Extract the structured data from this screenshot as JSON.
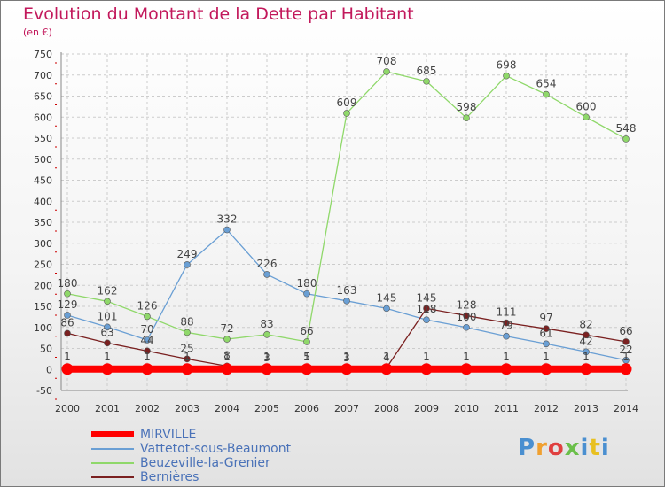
{
  "title": "Evolution du Montant de la Dette par Habitant",
  "subtitle": "(en €)",
  "colors": {
    "title": "#c2185b",
    "grid": "#cccccc",
    "axis_ticks": "#cc0000"
  },
  "chart_data": {
    "type": "line",
    "title": "Evolution du Montant de la Dette par Habitant",
    "ylabel": "(en €)",
    "xlabel": "",
    "x": [
      "2000",
      "2001",
      "2002",
      "2003",
      "2004",
      "2005",
      "2006",
      "2007",
      "2008",
      "2009",
      "2010",
      "2011",
      "2012",
      "2013",
      "2014"
    ],
    "ylim": [
      -50,
      750
    ],
    "yticks": [
      -50,
      0,
      50,
      100,
      150,
      200,
      250,
      300,
      350,
      400,
      450,
      500,
      550,
      600,
      650,
      700,
      750
    ],
    "grid": true,
    "legend_position": "bottom-left",
    "series": [
      {
        "name": "MIRVILLE",
        "color": "#ff0000",
        "values": [
          1,
          1,
          1,
          1,
          1,
          1,
          1,
          1,
          1,
          1,
          1,
          1,
          1,
          1,
          1
        ],
        "labels": [
          "1",
          "1",
          "1",
          "1",
          "1",
          "1",
          "1",
          "1",
          "1",
          "1",
          "1",
          "1",
          "1",
          "1",
          "1"
        ]
      },
      {
        "name": "Vattetot-sous-Beaumont",
        "color": "#6a9fd4",
        "values": [
          129,
          101,
          70,
          249,
          332,
          226,
          180,
          163,
          145,
          118,
          100,
          79,
          61,
          42,
          22
        ],
        "labels": [
          "129",
          "101",
          "70",
          "249",
          "332",
          "226",
          "180",
          "163",
          "145",
          "118",
          "100",
          "79",
          "61",
          "42",
          "22"
        ]
      },
      {
        "name": "Beuzeville-la-Grenier",
        "color": "#8fd86a",
        "values": [
          180,
          162,
          126,
          88,
          72,
          83,
          66,
          609,
          708,
          685,
          598,
          698,
          654,
          600,
          548
        ],
        "labels": [
          "180",
          "162",
          "126",
          "88",
          "72",
          "83",
          "66",
          "609",
          "708",
          "685",
          "598",
          "698",
          "654",
          "600",
          "548"
        ]
      },
      {
        "name": "Bernières",
        "color": "#7a2020",
        "values": [
          86,
          63,
          44,
          25,
          8,
          3,
          5,
          3,
          4,
          145,
          128,
          111,
          97,
          82,
          66
        ],
        "labels": [
          "86",
          "63",
          "44",
          "25",
          "8",
          "3",
          "5",
          "3",
          "4",
          "145",
          "128",
          "111",
          "97",
          "82",
          "66"
        ]
      }
    ]
  },
  "legend": {
    "items": [
      {
        "name": "MIRVILLE",
        "color": "#ff0000"
      },
      {
        "name": "Vattetot-sous-Beaumont",
        "color": "#6a9fd4"
      },
      {
        "name": "Beuzeville-la-Grenier",
        "color": "#8fd86a"
      },
      {
        "name": "Bernières",
        "color": "#7a2020"
      }
    ]
  },
  "logo": {
    "text": "Proxiti",
    "letter_colors": [
      "#4a8fd0",
      "#f0a030",
      "#e04040",
      "#6bbf4a",
      "#4a8fd0",
      "#e8c020",
      "#4a8fd0"
    ]
  }
}
